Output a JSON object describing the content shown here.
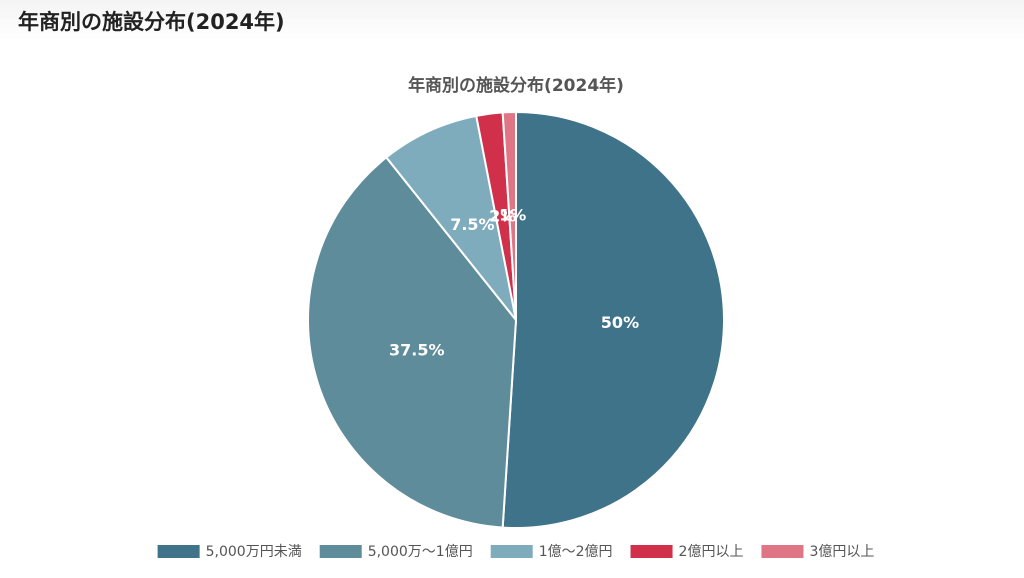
{
  "header": {
    "title": "年商別の施設分布(2024年)"
  },
  "chart_data": {
    "type": "pie",
    "title": "年商別の施設分布(2024年)",
    "categories": [
      "5,000万円未満",
      "5,000万〜1億円",
      "1億〜2億円",
      "2億円以上",
      "3億円以上"
    ],
    "values": [
      50,
      37.5,
      7.5,
      2,
      1
    ],
    "value_labels": [
      "50%",
      "37.5%",
      "7.5%",
      "2%",
      "1%"
    ],
    "colors": [
      "#3e7389",
      "#5e8c9a",
      "#7eacbd",
      "#d0304a",
      "#e07585"
    ],
    "legend": "bottom"
  }
}
